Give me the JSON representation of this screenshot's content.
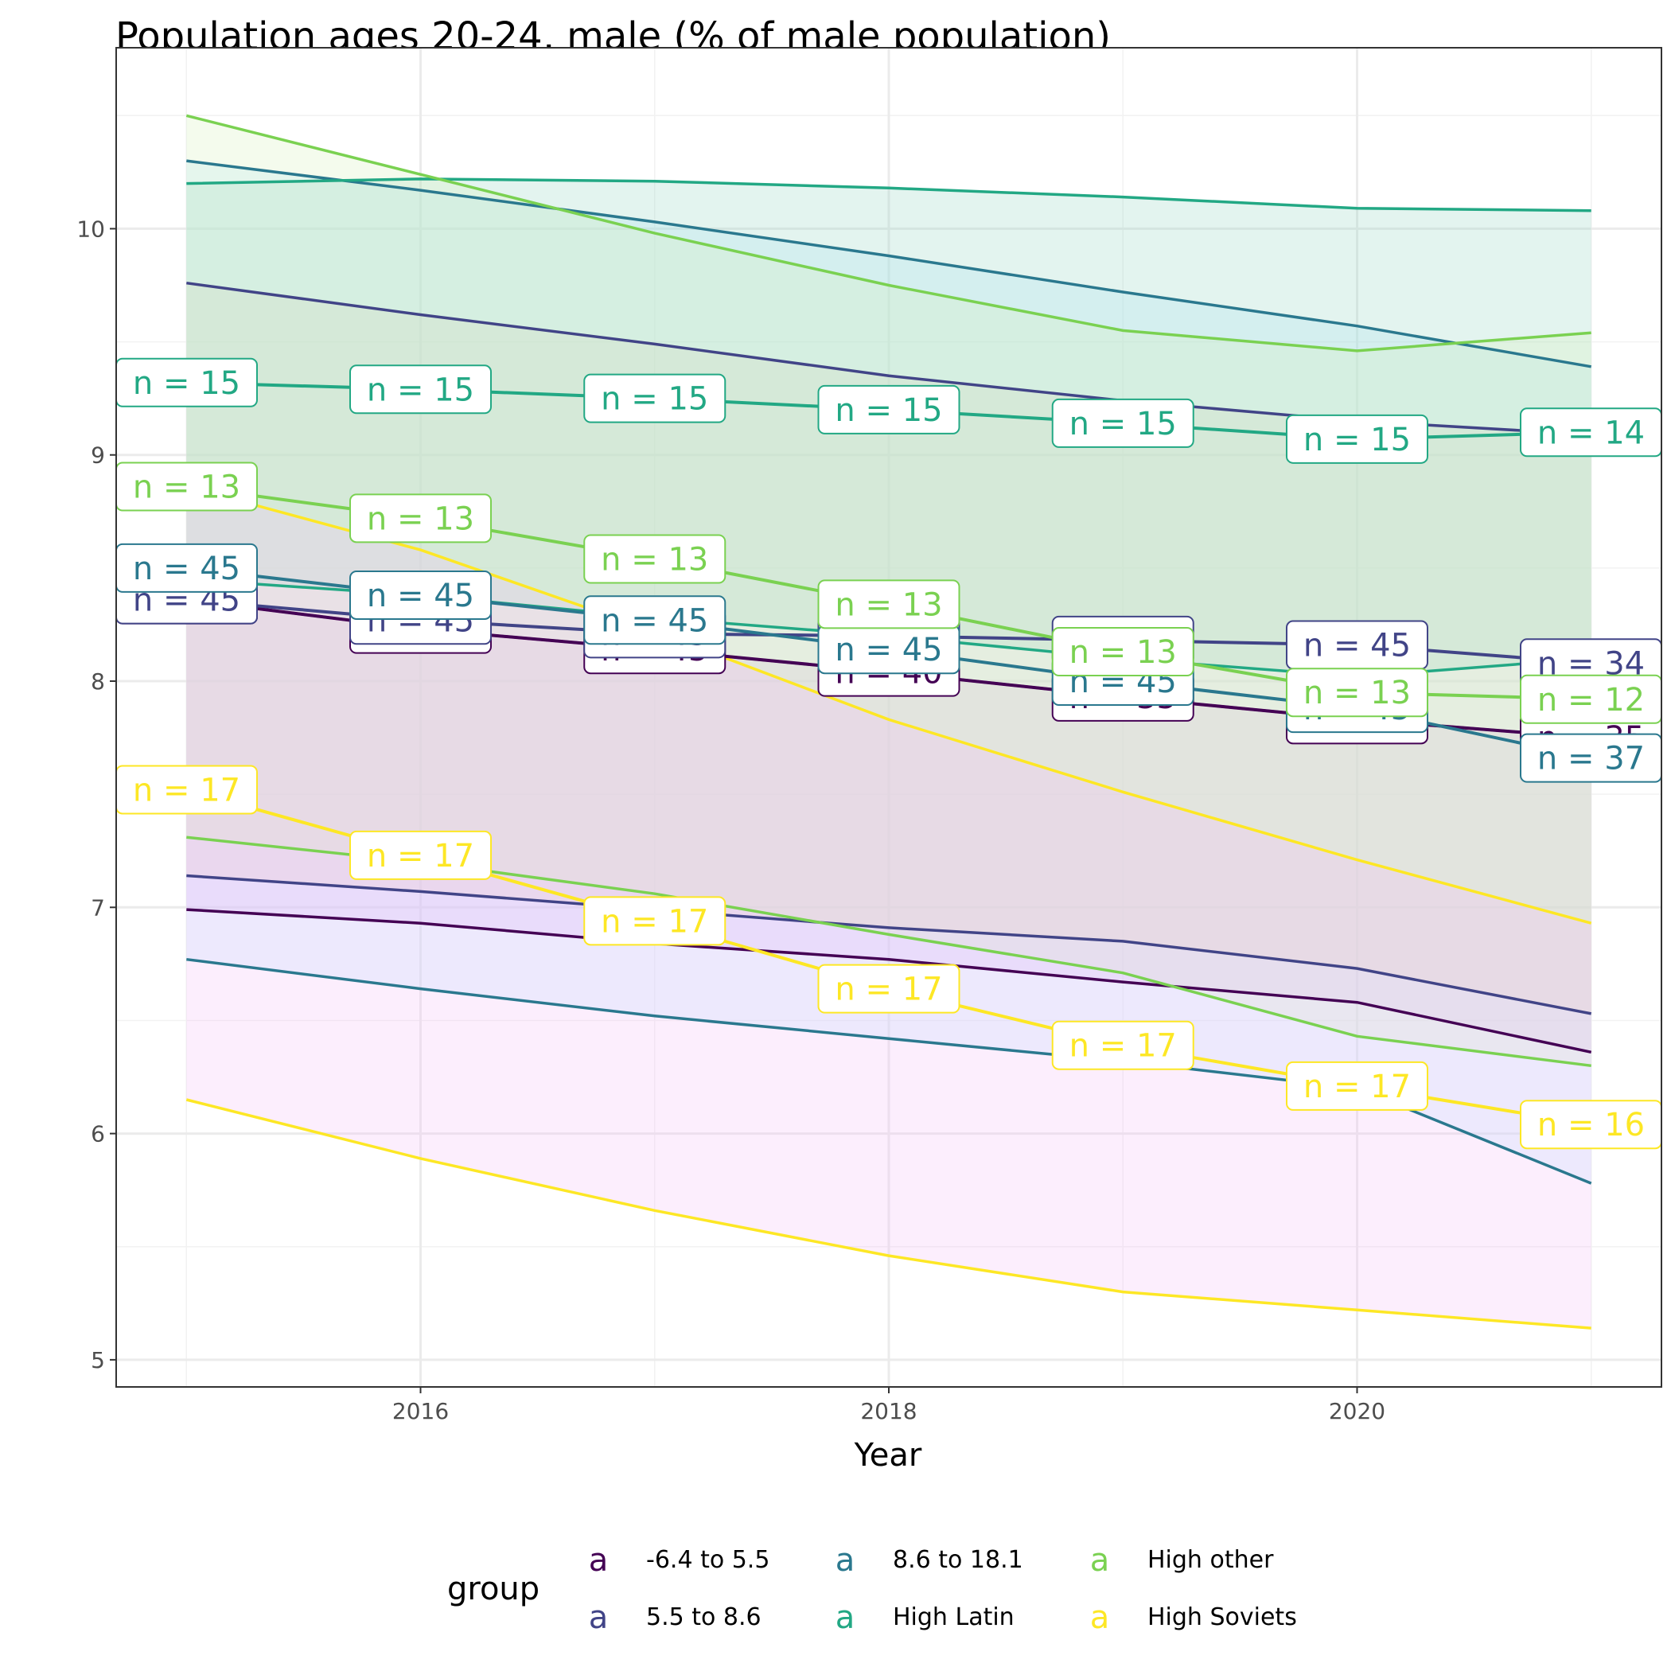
{
  "chart_data": {
    "type": "line",
    "title": "Population ages 20-24, male (% of male population)",
    "xlabel": "Year",
    "ylabel": "",
    "xlim": [
      2014.7,
      2021.3
    ],
    "ylim": [
      4.88,
      10.8
    ],
    "x_ticks": [
      2016,
      2018,
      2020
    ],
    "y_ticks": [
      5,
      6,
      7,
      8,
      9,
      10
    ],
    "grid": true,
    "legend_position": "bottom",
    "legend_title": "group",
    "legend_glyph": "a",
    "x": [
      2015,
      2016,
      2017,
      2018,
      2019,
      2020,
      2021
    ],
    "series": [
      {
        "name": "-6.4 to 5.5",
        "color": "#440154",
        "ribbon_fill": "#e3a1f0",
        "mean": [
          8.36,
          8.23,
          8.14,
          8.04,
          7.93,
          7.83,
          7.75
        ],
        "lower": [
          6.99,
          6.93,
          6.84,
          6.77,
          6.67,
          6.58,
          6.36
        ],
        "upper": [
          8.36,
          8.23,
          8.14,
          8.04,
          7.93,
          7.83,
          7.75
        ],
        "n_labels": [
          "n = 45",
          "n = 45",
          "n = 45",
          "n = 40",
          "n = 35",
          "n = 45",
          "n = 35"
        ]
      },
      {
        "name": "5.5 to 8.6",
        "color": "#414487",
        "ribbon_fill": "#ffc8a8",
        "mean": [
          8.36,
          8.27,
          8.21,
          8.2,
          8.18,
          8.16,
          8.08
        ],
        "lower": [
          7.14,
          7.07,
          6.99,
          6.91,
          6.85,
          6.73,
          6.53
        ],
        "upper": [
          9.76,
          9.62,
          9.49,
          9.35,
          9.24,
          9.15,
          9.09
        ],
        "n_labels": [
          "n = 45",
          "n = 45",
          "n = 45",
          "n = 45",
          "n = 45",
          "n = 45",
          "n = 34"
        ]
      },
      {
        "name": "8.6 to 18.1",
        "color": "#2a788e",
        "ribbon_fill": "#b6ebff",
        "mean": [
          8.5,
          8.38,
          8.27,
          8.14,
          8.0,
          7.88,
          7.66
        ],
        "lower": [
          6.77,
          6.64,
          6.52,
          6.42,
          6.32,
          6.2,
          5.78
        ],
        "upper": [
          10.3,
          10.17,
          10.03,
          9.88,
          9.72,
          9.57,
          9.39
        ],
        "n_labels": [
          "n = 45",
          "n = 45",
          "n = 45",
          "n = 45",
          "n = 45",
          "n = 45",
          "n = 37"
        ]
      },
      {
        "name": "High Latin",
        "color": "#22a884",
        "ribbon_fill": "#9cd9c7",
        "mean": [
          9.32,
          9.29,
          9.25,
          9.2,
          9.14,
          9.07,
          9.1
        ],
        "lower": [
          8.45,
          8.38,
          8.28,
          8.2,
          8.1,
          8.02,
          8.1
        ],
        "upper": [
          10.2,
          10.22,
          10.21,
          10.18,
          10.14,
          10.09,
          10.08
        ],
        "n_labels": [
          "n = 15",
          "n = 15",
          "n = 15",
          "n = 15",
          "n = 15",
          "n = 15",
          "n = 14"
        ]
      },
      {
        "name": "High other",
        "color": "#7ad151",
        "ribbon_fill": "#d8f0c0",
        "mean": [
          8.86,
          8.72,
          8.54,
          8.34,
          8.13,
          7.95,
          7.92
        ],
        "lower": [
          7.31,
          7.2,
          7.06,
          6.88,
          6.71,
          6.43,
          6.3
        ],
        "upper": [
          10.5,
          10.24,
          9.98,
          9.75,
          9.55,
          9.46,
          9.54
        ],
        "n_labels": [
          "n = 13",
          "n = 13",
          "n = 13",
          "n = 13",
          "n = 13",
          "n = 13",
          "n = 12"
        ]
      },
      {
        "name": "High Soviets",
        "color": "#fde725",
        "ribbon_fill": "#f3c3f7",
        "mean": [
          7.52,
          7.23,
          6.94,
          6.64,
          6.39,
          6.21,
          6.04
        ],
        "lower": [
          6.15,
          5.89,
          5.66,
          5.46,
          5.3,
          5.22,
          5.14
        ],
        "upper": [
          8.86,
          8.58,
          8.22,
          7.83,
          7.51,
          7.21,
          6.93
        ],
        "n_labels": [
          "n = 17",
          "n = 17",
          "n = 17",
          "n = 17",
          "n = 17",
          "n = 17",
          "n = 16"
        ]
      }
    ]
  }
}
